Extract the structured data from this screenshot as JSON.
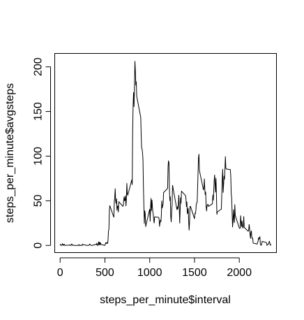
{
  "chart_data": {
    "type": "line",
    "title": "",
    "xlabel": "steps_per_minute$interval",
    "ylabel": "steps_per_minute$avgsteps",
    "xlim": [
      -60,
      2415
    ],
    "ylim": [
      -8,
      215
    ],
    "x_ticks": [
      0,
      500,
      1000,
      1500,
      2000
    ],
    "y_ticks": [
      0,
      50,
      100,
      150,
      200
    ],
    "grid": false,
    "series": [
      {
        "name": "",
        "color": "#000000",
        "points": [
          [
            0,
            1.7
          ],
          [
            5,
            0.3
          ],
          [
            10,
            0.1
          ],
          [
            15,
            0.2
          ],
          [
            20,
            0.1
          ],
          [
            25,
            2.1
          ],
          [
            30,
            0.5
          ],
          [
            35,
            0.9
          ],
          [
            40,
            0.0
          ],
          [
            45,
            1.5
          ],
          [
            50,
            0.3
          ],
          [
            55,
            0.1
          ],
          [
            100,
            0.3
          ],
          [
            105,
            0.7
          ],
          [
            110,
            0.2
          ],
          [
            115,
            0.3
          ],
          [
            120,
            0.0
          ],
          [
            125,
            1.1
          ],
          [
            130,
            1.8
          ],
          [
            135,
            0.2
          ],
          [
            140,
            0.2
          ],
          [
            145,
            0.4
          ],
          [
            150,
            0.3
          ],
          [
            155,
            0.0
          ],
          [
            200,
            0.0
          ],
          [
            205,
            0.0
          ],
          [
            210,
            1.1
          ],
          [
            215,
            0.0
          ],
          [
            220,
            0.0
          ],
          [
            225,
            0.1
          ],
          [
            230,
            0.0
          ],
          [
            235,
            0.2
          ],
          [
            240,
            0.0
          ],
          [
            245,
            0.0
          ],
          [
            250,
            1.5
          ],
          [
            255,
            0.9
          ],
          [
            300,
            0.0
          ],
          [
            305,
            0.0
          ],
          [
            310,
            0.0
          ],
          [
            315,
            0.0
          ],
          [
            320,
            0.2
          ],
          [
            325,
            0.6
          ],
          [
            330,
            1.6
          ],
          [
            335,
            0.6
          ],
          [
            340,
            0.5
          ],
          [
            345,
            0.1
          ],
          [
            350,
            0.0
          ],
          [
            355,
            0.0
          ],
          [
            400,
            1.2
          ],
          [
            405,
            0.9
          ],
          [
            410,
            2.6
          ],
          [
            415,
            0.0
          ],
          [
            420,
            0.3
          ],
          [
            425,
            0.4
          ],
          [
            430,
            4.1
          ],
          [
            435,
            0.7
          ],
          [
            440,
            3.5
          ],
          [
            445,
            0.8
          ],
          [
            450,
            3.1
          ],
          [
            455,
            1.1
          ],
          [
            500,
            0.0
          ],
          [
            505,
            1.6
          ],
          [
            510,
            3.0
          ],
          [
            515,
            2.2
          ],
          [
            520,
            3.3
          ],
          [
            525,
            3.0
          ],
          [
            530,
            2.1
          ],
          [
            535,
            6.1
          ],
          [
            540,
            16.0
          ],
          [
            545,
            18.3
          ],
          [
            550,
            39.5
          ],
          [
            555,
            44.5
          ],
          [
            600,
            31.5
          ],
          [
            605,
            49.3
          ],
          [
            610,
            53.8
          ],
          [
            615,
            63.5
          ],
          [
            620,
            50.0
          ],
          [
            625,
            47.1
          ],
          [
            630,
            52.2
          ],
          [
            635,
            39.3
          ],
          [
            640,
            44.0
          ],
          [
            645,
            44.2
          ],
          [
            650,
            37.4
          ],
          [
            655,
            49.0
          ],
          [
            700,
            43.8
          ],
          [
            705,
            44.4
          ],
          [
            710,
            50.5
          ],
          [
            715,
            54.5
          ],
          [
            720,
            49.9
          ],
          [
            725,
            51.0
          ],
          [
            730,
            55.7
          ],
          [
            735,
            44.3
          ],
          [
            740,
            52.3
          ],
          [
            745,
            69.5
          ],
          [
            750,
            57.8
          ],
          [
            755,
            56.2
          ],
          [
            800,
            73.4
          ],
          [
            805,
            68.2
          ],
          [
            810,
            129.4
          ],
          [
            815,
            157.5
          ],
          [
            820,
            171.2
          ],
          [
            825,
            155.4
          ],
          [
            830,
            177.3
          ],
          [
            835,
            206.2
          ],
          [
            840,
            195.9
          ],
          [
            845,
            179.6
          ],
          [
            850,
            183.4
          ],
          [
            855,
            167.0
          ],
          [
            900,
            143.5
          ],
          [
            905,
            124.0
          ],
          [
            910,
            109.1
          ],
          [
            915,
            108.1
          ],
          [
            920,
            103.7
          ],
          [
            925,
            95.9
          ],
          [
            930,
            66.2
          ],
          [
            935,
            45.2
          ],
          [
            940,
            24.8
          ],
          [
            945,
            38.8
          ],
          [
            950,
            35.0
          ],
          [
            955,
            21.1
          ],
          [
            1000,
            40.6
          ],
          [
            1005,
            27.0
          ],
          [
            1010,
            42.4
          ],
          [
            1015,
            52.7
          ],
          [
            1020,
            38.9
          ],
          [
            1025,
            50.8
          ],
          [
            1030,
            44.3
          ],
          [
            1035,
            37.4
          ],
          [
            1040,
            34.7
          ],
          [
            1045,
            28.3
          ],
          [
            1050,
            25.1
          ],
          [
            1055,
            31.9
          ],
          [
            1100,
            31.4
          ],
          [
            1105,
            29.7
          ],
          [
            1110,
            21.3
          ],
          [
            1115,
            25.5
          ],
          [
            1120,
            28.4
          ],
          [
            1125,
            26.5
          ],
          [
            1130,
            33.4
          ],
          [
            1135,
            49.9
          ],
          [
            1140,
            42.0
          ],
          [
            1145,
            44.6
          ],
          [
            1150,
            46.0
          ],
          [
            1155,
            59.2
          ],
          [
            1200,
            63.9
          ],
          [
            1205,
            87.7
          ],
          [
            1210,
            94.8
          ],
          [
            1215,
            92.8
          ],
          [
            1220,
            63.4
          ],
          [
            1225,
            50.2
          ],
          [
            1230,
            54.5
          ],
          [
            1235,
            32.4
          ],
          [
            1240,
            26.5
          ],
          [
            1245,
            37.7
          ],
          [
            1250,
            45.1
          ],
          [
            1255,
            67.3
          ],
          [
            1300,
            42.3
          ],
          [
            1305,
            39.9
          ],
          [
            1310,
            43.3
          ],
          [
            1315,
            40.98
          ],
          [
            1320,
            46.2
          ],
          [
            1325,
            56.4
          ],
          [
            1330,
            42.8
          ],
          [
            1335,
            25.1
          ],
          [
            1340,
            39.96
          ],
          [
            1345,
            53.5
          ],
          [
            1350,
            47.3
          ],
          [
            1355,
            60.8
          ],
          [
            1400,
            55.8
          ],
          [
            1405,
            51.96
          ],
          [
            1410,
            43.6
          ],
          [
            1415,
            48.7
          ],
          [
            1420,
            35.5
          ],
          [
            1425,
            37.5
          ],
          [
            1430,
            41.8
          ],
          [
            1435,
            27.5
          ],
          [
            1440,
            17.1
          ],
          [
            1445,
            26.1
          ],
          [
            1450,
            43.6
          ],
          [
            1455,
            43.8
          ],
          [
            1500,
            30.0
          ],
          [
            1505,
            36.1
          ],
          [
            1510,
            35.5
          ],
          [
            1515,
            38.8
          ],
          [
            1520,
            45.96
          ],
          [
            1525,
            47.8
          ],
          [
            1530,
            48.1
          ],
          [
            1535,
            65.3
          ],
          [
            1540,
            82.9
          ],
          [
            1545,
            98.7
          ],
          [
            1550,
            102.1
          ],
          [
            1555,
            83.96
          ],
          [
            1600,
            62.1
          ],
          [
            1605,
            64.1
          ],
          [
            1610,
            74.5
          ],
          [
            1615,
            63.2
          ],
          [
            1620,
            56.9
          ],
          [
            1625,
            59.8
          ],
          [
            1630,
            43.9
          ],
          [
            1635,
            38.6
          ],
          [
            1640,
            44.7
          ],
          [
            1645,
            45.5
          ],
          [
            1650,
            46.2
          ],
          [
            1655,
            43.7
          ],
          [
            1700,
            46.6
          ],
          [
            1705,
            56.3
          ],
          [
            1710,
            50.7
          ],
          [
            1715,
            61.2
          ],
          [
            1720,
            72.7
          ],
          [
            1725,
            78.9
          ],
          [
            1730,
            68.9
          ],
          [
            1735,
            59.7
          ],
          [
            1740,
            75.1
          ],
          [
            1745,
            56.5
          ],
          [
            1750,
            34.8
          ],
          [
            1755,
            37.5
          ],
          [
            1800,
            40.7
          ],
          [
            1805,
            58.0
          ],
          [
            1810,
            74.7
          ],
          [
            1815,
            85.3
          ],
          [
            1820,
            59.3
          ],
          [
            1825,
            67.8
          ],
          [
            1830,
            77.7
          ],
          [
            1835,
            74.2
          ],
          [
            1840,
            85.3
          ],
          [
            1845,
            99.5
          ],
          [
            1850,
            86.6
          ],
          [
            1855,
            85.6
          ],
          [
            1900,
            84.9
          ],
          [
            1905,
            77.8
          ],
          [
            1910,
            58.0
          ],
          [
            1915,
            53.4
          ],
          [
            1920,
            36.3
          ],
          [
            1925,
            20.7
          ],
          [
            1930,
            27.4
          ],
          [
            1935,
            40.0
          ],
          [
            1940,
            30.2
          ],
          [
            1945,
            25.5
          ],
          [
            1950,
            45.7
          ],
          [
            1955,
            33.5
          ],
          [
            2000,
            19.6
          ],
          [
            2005,
            19.0
          ],
          [
            2010,
            19.3
          ],
          [
            2015,
            33.3
          ],
          [
            2020,
            26.8
          ],
          [
            2025,
            21.2
          ],
          [
            2030,
            27.3
          ],
          [
            2035,
            21.3
          ],
          [
            2040,
            19.5
          ],
          [
            2045,
            21.3
          ],
          [
            2050,
            32.3
          ],
          [
            2055,
            20.2
          ],
          [
            2100,
            15.9
          ],
          [
            2105,
            17.2
          ],
          [
            2110,
            23.5
          ],
          [
            2115,
            19.2
          ],
          [
            2120,
            12.5
          ],
          [
            2125,
            8.0
          ],
          [
            2130,
            14.7
          ],
          [
            2135,
            16.3
          ],
          [
            2140,
            8.7
          ],
          [
            2145,
            7.8
          ],
          [
            2150,
            8.1
          ],
          [
            2155,
            2.6
          ],
          [
            2200,
            1.5
          ],
          [
            2205,
            3.7
          ],
          [
            2210,
            4.8
          ],
          [
            2215,
            8.5
          ],
          [
            2220,
            7.1
          ],
          [
            2225,
            8.7
          ],
          [
            2230,
            9.8
          ],
          [
            2235,
            2.2
          ],
          [
            2240,
            0.3
          ],
          [
            2245,
            0.1
          ],
          [
            2250,
            1.6
          ],
          [
            2255,
            4.6
          ],
          [
            2300,
            3.3
          ],
          [
            2305,
            2.8
          ],
          [
            2310,
            0.0
          ],
          [
            2315,
            0.8
          ],
          [
            2320,
            0.96
          ],
          [
            2325,
            1.6
          ],
          [
            2330,
            2.6
          ],
          [
            2335,
            4.7
          ],
          [
            2340,
            3.3
          ],
          [
            2345,
            0.6
          ],
          [
            2350,
            0.2
          ],
          [
            2355,
            1.1
          ]
        ]
      }
    ]
  }
}
